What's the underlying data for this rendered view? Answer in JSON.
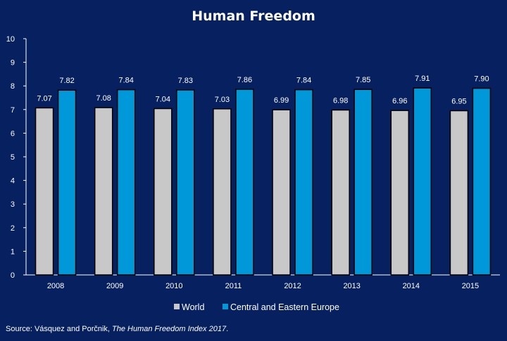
{
  "chart_data": {
    "type": "bar",
    "title": "Human Freedom",
    "categories": [
      "2008",
      "2009",
      "2010",
      "2011",
      "2012",
      "2013",
      "2014",
      "2015"
    ],
    "series": [
      {
        "name": "World",
        "values": [
          7.07,
          7.08,
          7.04,
          7.03,
          6.99,
          6.98,
          6.96,
          6.95
        ],
        "color": "#c8c8c8"
      },
      {
        "name": "Central and Eastern Europe",
        "values": [
          7.82,
          7.84,
          7.83,
          7.86,
          7.84,
          7.85,
          7.91,
          7.9
        ],
        "color": "#0098d8"
      }
    ],
    "ylim": [
      0,
      10
    ],
    "yticks": [
      "0",
      "1",
      "2",
      "3",
      "4",
      "5",
      "6",
      "7",
      "8",
      "9",
      "10"
    ],
    "grid": false,
    "legend_position": "bottom",
    "value_labels": true
  },
  "source": {
    "prefix": "Source: Vásquez and Porčnik, ",
    "title": "The Human Freedom Index 2017",
    "suffix": "."
  },
  "colors": {
    "background": "#062060",
    "axis": "#ffffff"
  }
}
